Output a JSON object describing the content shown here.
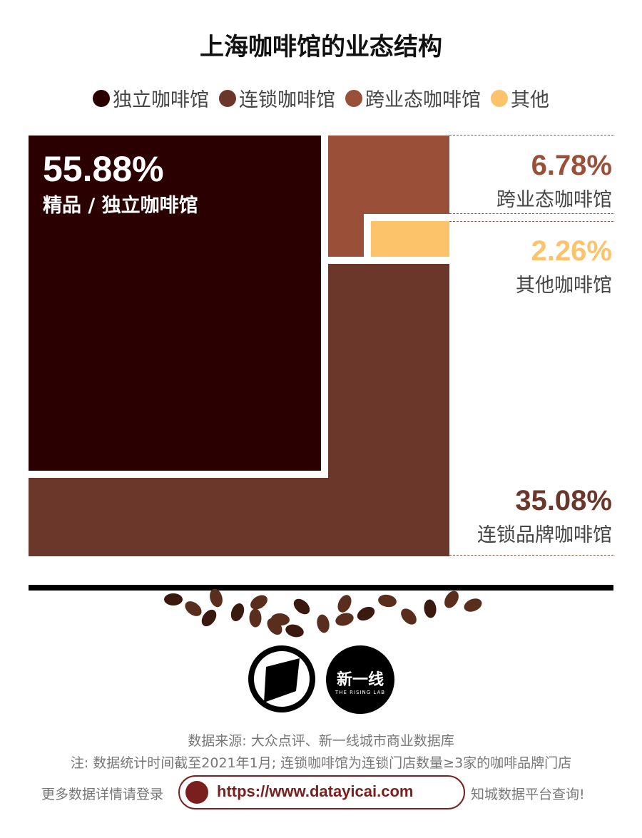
{
  "title": "上海咖啡馆的业态结构",
  "legend": [
    {
      "label": "独立咖啡馆",
      "color": "#2b0000"
    },
    {
      "label": "连锁咖啡馆",
      "color": "#6b372b"
    },
    {
      "label": "跨业态咖啡馆",
      "color": "#9a4f38"
    },
    {
      "label": "其他",
      "color": "#fcc36b"
    }
  ],
  "chart_data": {
    "type": "treemap",
    "title": "上海咖啡馆的业态结构",
    "categories": [
      "精品 / 独立咖啡馆",
      "连锁品牌咖啡馆",
      "跨业态咖啡馆",
      "其他咖啡馆"
    ],
    "values": [
      55.88,
      35.08,
      6.78,
      2.26
    ],
    "value_labels": [
      "55.88%",
      "35.08%",
      "6.78%",
      "2.26%"
    ],
    "colors": [
      "#2b0000",
      "#6b372b",
      "#9a4f38",
      "#fcc36b"
    ]
  },
  "footer": {
    "source": "数据来源: 大众点评、新一线城市商业数据库",
    "note": "注: 数据统计时间截至2021年1月; 连锁咖啡馆为连锁门店数量≥3家的咖啡品牌门店",
    "cta_left": "更多数据详情请登录",
    "url": "https://www.datayicai.com",
    "cta_right": "知城数据平台查询!",
    "logo2_text": "新一线",
    "logo2_sub": "THE RISING LAB"
  }
}
